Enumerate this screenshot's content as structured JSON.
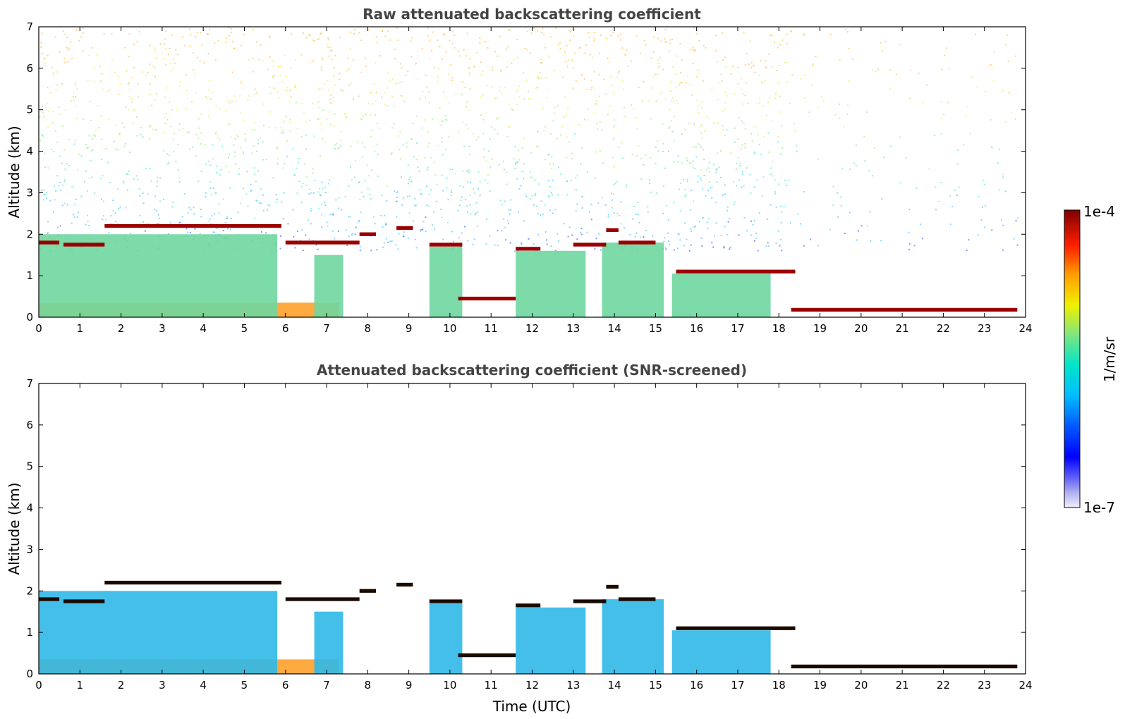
{
  "chart_data": [
    {
      "type": "heatmap",
      "title": "Raw attenuated backscattering coefficient",
      "xlabel": "",
      "ylabel": "Altitude (km)",
      "xlim": [
        0,
        24
      ],
      "ylim": [
        0,
        7
      ],
      "xticks": [
        "0",
        "1",
        "2",
        "3",
        "4",
        "5",
        "6",
        "7",
        "8",
        "9",
        "10",
        "11",
        "12",
        "13",
        "14",
        "15",
        "16",
        "17",
        "18",
        "19",
        "20",
        "21",
        "22",
        "23",
        "24"
      ],
      "yticks": [
        "0",
        "1",
        "2",
        "3",
        "4",
        "5",
        "6",
        "7"
      ],
      "grid": false,
      "noise": "strong",
      "features": [
        {
          "kind": "boundary_layer",
          "t0": 0,
          "t1": 7.3,
          "h": 0.35
        },
        {
          "kind": "aerosol_layer",
          "t0": 0,
          "t1": 5.8,
          "h": 2.0
        },
        {
          "kind": "aerosol_layer",
          "t0": 6.7,
          "t1": 7.4,
          "h": 1.5
        },
        {
          "kind": "aerosol_layer",
          "t0": 9.5,
          "t1": 10.3,
          "h": 1.7
        },
        {
          "kind": "aerosol_layer",
          "t0": 11.6,
          "t1": 13.3,
          "h": 1.6
        },
        {
          "kind": "aerosol_layer",
          "t0": 13.7,
          "t1": 15.2,
          "h": 1.8
        },
        {
          "kind": "aerosol_layer",
          "t0": 15.4,
          "t1": 17.8,
          "h": 1.05
        },
        {
          "kind": "cloud",
          "t0": 0,
          "t1": 0.5,
          "h": 1.8
        },
        {
          "kind": "cloud",
          "t0": 0.6,
          "t1": 1.6,
          "h": 1.75
        },
        {
          "kind": "cloud",
          "t0": 1.6,
          "t1": 5.9,
          "h": 2.2
        },
        {
          "kind": "cloud",
          "t0": 6.0,
          "t1": 7.8,
          "h": 1.8
        },
        {
          "kind": "cloud",
          "t0": 7.8,
          "t1": 8.2,
          "h": 2.0
        },
        {
          "kind": "cloud",
          "t0": 8.7,
          "t1": 9.1,
          "h": 2.15
        },
        {
          "kind": "cloud",
          "t0": 9.5,
          "t1": 10.3,
          "h": 1.75
        },
        {
          "kind": "cloud",
          "t0": 10.2,
          "t1": 11.6,
          "h": 0.45
        },
        {
          "kind": "cloud",
          "t0": 11.6,
          "t1": 12.2,
          "h": 1.65
        },
        {
          "kind": "cloud",
          "t0": 13.0,
          "t1": 13.8,
          "h": 1.75
        },
        {
          "kind": "cloud",
          "t0": 13.8,
          "t1": 14.1,
          "h": 2.1
        },
        {
          "kind": "cloud",
          "t0": 14.1,
          "t1": 15.0,
          "h": 1.8
        },
        {
          "kind": "cloud",
          "t0": 15.5,
          "t1": 18.4,
          "h": 1.1
        },
        {
          "kind": "cloud",
          "t0": 18.3,
          "t1": 23.8,
          "h": 0.18
        }
      ]
    },
    {
      "type": "heatmap",
      "title": "Attenuated backscattering coefficient (SNR-screened)",
      "xlabel": "Time (UTC)",
      "ylabel": "Altitude (km)",
      "xlim": [
        0,
        24
      ],
      "ylim": [
        0,
        7
      ],
      "xticks": [
        "0",
        "1",
        "2",
        "3",
        "4",
        "5",
        "6",
        "7",
        "8",
        "9",
        "10",
        "11",
        "12",
        "13",
        "14",
        "15",
        "16",
        "17",
        "18",
        "19",
        "20",
        "21",
        "22",
        "23",
        "24"
      ],
      "yticks": [
        "0",
        "1",
        "2",
        "3",
        "4",
        "5",
        "6",
        "7"
      ],
      "grid": false,
      "noise": "none",
      "features": [
        {
          "kind": "boundary_layer",
          "t0": 0,
          "t1": 7.3,
          "h": 0.35
        },
        {
          "kind": "aerosol_layer",
          "t0": 0,
          "t1": 5.8,
          "h": 2.0
        },
        {
          "kind": "aerosol_layer",
          "t0": 6.7,
          "t1": 7.4,
          "h": 1.5
        },
        {
          "kind": "aerosol_layer",
          "t0": 9.5,
          "t1": 10.3,
          "h": 1.7
        },
        {
          "kind": "aerosol_layer",
          "t0": 11.6,
          "t1": 13.3,
          "h": 1.6
        },
        {
          "kind": "aerosol_layer",
          "t0": 13.7,
          "t1": 15.2,
          "h": 1.8
        },
        {
          "kind": "aerosol_layer",
          "t0": 15.4,
          "t1": 17.8,
          "h": 1.05
        },
        {
          "kind": "cloud",
          "t0": 0,
          "t1": 0.5,
          "h": 1.8
        },
        {
          "kind": "cloud",
          "t0": 0.6,
          "t1": 1.6,
          "h": 1.75
        },
        {
          "kind": "cloud",
          "t0": 1.6,
          "t1": 5.9,
          "h": 2.2
        },
        {
          "kind": "cloud",
          "t0": 6.0,
          "t1": 7.8,
          "h": 1.8
        },
        {
          "kind": "cloud",
          "t0": 7.8,
          "t1": 8.2,
          "h": 2.0
        },
        {
          "kind": "cloud",
          "t0": 8.7,
          "t1": 9.1,
          "h": 2.15
        },
        {
          "kind": "cloud",
          "t0": 9.5,
          "t1": 10.3,
          "h": 1.75
        },
        {
          "kind": "cloud",
          "t0": 10.2,
          "t1": 11.6,
          "h": 0.45
        },
        {
          "kind": "cloud",
          "t0": 11.6,
          "t1": 12.2,
          "h": 1.65
        },
        {
          "kind": "cloud",
          "t0": 13.0,
          "t1": 13.8,
          "h": 1.75
        },
        {
          "kind": "cloud",
          "t0": 13.8,
          "t1": 14.1,
          "h": 2.1
        },
        {
          "kind": "cloud",
          "t0": 14.1,
          "t1": 15.0,
          "h": 1.8
        },
        {
          "kind": "cloud",
          "t0": 15.5,
          "t1": 18.4,
          "h": 1.1
        },
        {
          "kind": "cloud",
          "t0": 18.3,
          "t1": 23.8,
          "h": 0.18
        }
      ]
    }
  ],
  "colorbar": {
    "label": "1/m/sr",
    "max_label": "1e-4",
    "min_label": "1e-7",
    "range": [
      1e-07,
      0.0001
    ],
    "scale": "log",
    "colors": [
      "#e8e8f8",
      "#b0b0f0",
      "#0000ff",
      "#00bfff",
      "#00e5c0",
      "#7fe57f",
      "#f0f000",
      "#ffa000",
      "#ff2000",
      "#800000"
    ]
  }
}
